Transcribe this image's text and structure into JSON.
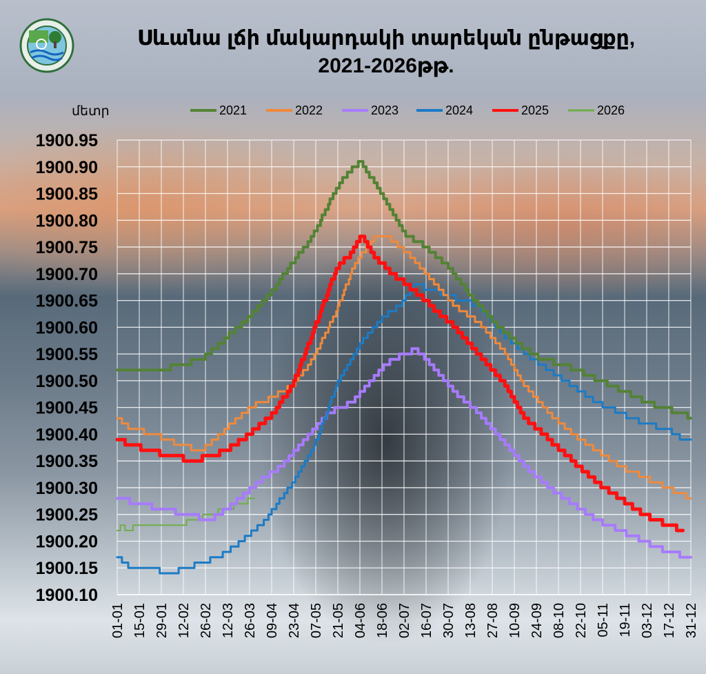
{
  "header": {
    "title_line1": "Սևանա լճի մակարդակի տարեկան ընթացքը,",
    "title_line2": "2021-2026թթ."
  },
  "chart_data": {
    "type": "line",
    "title": "Սևանա լճի մակարդակի տարեկան ընթացքը, 2021-2026թթ.",
    "ylabel": "մետր",
    "xlabel": "",
    "ylim": [
      1900.1,
      1900.95
    ],
    "ystep": 0.05,
    "grid": true,
    "legend_position": "top",
    "x_tick_labels": [
      "01-01",
      "15-01",
      "29-01",
      "12-02",
      "26-02",
      "12-03",
      "26-03",
      "09-04",
      "23-04",
      "07-05",
      "21-05",
      "04-06",
      "18-06",
      "02-07",
      "16-07",
      "30-07",
      "13-08",
      "27-08",
      "10-09",
      "24-09",
      "08-10",
      "22-10",
      "05-11",
      "19-11",
      "03-12",
      "17-12",
      "31-12"
    ],
    "x_tick_days": [
      1,
      15,
      29,
      43,
      57,
      71,
      85,
      99,
      113,
      127,
      141,
      155,
      169,
      183,
      197,
      211,
      225,
      239,
      253,
      267,
      281,
      295,
      309,
      323,
      337,
      351,
      365
    ],
    "series": [
      {
        "name": "2021",
        "color": "#548235",
        "width": 4,
        "x": [
          1,
          30,
          40,
          55,
          70,
          85,
          100,
          112,
          125,
          135,
          145,
          155,
          162,
          172,
          185,
          197,
          212,
          225,
          240,
          255,
          270,
          285,
          300,
          315,
          330,
          345,
          360,
          365
        ],
        "values": [
          1900.52,
          1900.52,
          1900.53,
          1900.54,
          1900.58,
          1900.62,
          1900.67,
          1900.72,
          1900.77,
          1900.83,
          1900.88,
          1900.91,
          1900.88,
          1900.83,
          1900.77,
          1900.75,
          1900.71,
          1900.66,
          1900.61,
          1900.57,
          1900.54,
          1900.53,
          1900.51,
          1900.49,
          1900.47,
          1900.45,
          1900.44,
          1900.43
        ]
      },
      {
        "name": "2022",
        "color": "#f08a3c",
        "width": 3,
        "x": [
          1,
          10,
          25,
          40,
          55,
          70,
          85,
          100,
          112,
          125,
          140,
          152,
          165,
          172,
          185,
          200,
          215,
          230,
          245,
          260,
          275,
          290,
          305,
          320,
          335,
          350,
          365
        ],
        "values": [
          1900.43,
          1900.41,
          1900.4,
          1900.38,
          1900.37,
          1900.41,
          1900.45,
          1900.47,
          1900.49,
          1900.54,
          1900.63,
          1900.72,
          1900.77,
          1900.77,
          1900.74,
          1900.69,
          1900.64,
          1900.61,
          1900.56,
          1900.49,
          1900.44,
          1900.4,
          1900.37,
          1900.34,
          1900.32,
          1900.3,
          1900.28
        ]
      },
      {
        "name": "2023",
        "color": "#a77bfc",
        "width": 4,
        "x": [
          1,
          15,
          30,
          45,
          60,
          75,
          90,
          105,
          120,
          135,
          150,
          165,
          175,
          185,
          190,
          200,
          215,
          230,
          245,
          260,
          275,
          290,
          305,
          320,
          335,
          350,
          365
        ],
        "values": [
          1900.28,
          1900.27,
          1900.26,
          1900.25,
          1900.24,
          1900.27,
          1900.31,
          1900.34,
          1900.39,
          1900.44,
          1900.46,
          1900.51,
          1900.54,
          1900.55,
          1900.56,
          1900.53,
          1900.48,
          1900.44,
          1900.39,
          1900.34,
          1900.3,
          1900.27,
          1900.24,
          1900.22,
          1900.2,
          1900.18,
          1900.17
        ]
      },
      {
        "name": "2024",
        "color": "#1b7bc6",
        "width": 3,
        "x": [
          1,
          10,
          20,
          35,
          45,
          55,
          65,
          80,
          95,
          110,
          125,
          140,
          155,
          170,
          180,
          190,
          210,
          230,
          245,
          260,
          275,
          290,
          305,
          320,
          335,
          350,
          360,
          365
        ],
        "values": [
          1900.17,
          1900.15,
          1900.15,
          1900.14,
          1900.15,
          1900.16,
          1900.17,
          1900.2,
          1900.24,
          1900.3,
          1900.37,
          1900.49,
          1900.57,
          1900.62,
          1900.64,
          1900.68,
          1900.66,
          1900.64,
          1900.59,
          1900.55,
          1900.52,
          1900.49,
          1900.46,
          1900.44,
          1900.42,
          1900.41,
          1900.39,
          1900.39
        ]
      },
      {
        "name": "2025",
        "color": "#ff1010",
        "width": 5,
        "x": [
          1,
          10,
          20,
          35,
          50,
          60,
          70,
          85,
          100,
          112,
          125,
          140,
          150,
          156,
          165,
          175,
          185,
          200,
          215,
          230,
          245,
          260,
          275,
          290,
          305,
          320,
          335,
          350,
          360
        ],
        "values": [
          1900.39,
          1900.38,
          1900.37,
          1900.36,
          1900.35,
          1900.36,
          1900.37,
          1900.4,
          1900.44,
          1900.49,
          1900.59,
          1900.71,
          1900.74,
          1900.77,
          1900.73,
          1900.7,
          1900.68,
          1900.64,
          1900.6,
          1900.55,
          1900.5,
          1900.43,
          1900.39,
          1900.35,
          1900.31,
          1900.28,
          1900.25,
          1900.23,
          1900.22
        ]
      },
      {
        "name": "2026",
        "color": "#70ad47",
        "width": 2,
        "x": [
          1,
          4,
          7,
          15,
          25,
          40,
          50,
          60,
          70,
          80,
          88
        ],
        "values": [
          1900.22,
          1900.23,
          1900.22,
          1900.23,
          1900.23,
          1900.23,
          1900.24,
          1900.25,
          1900.26,
          1900.27,
          1900.28
        ]
      }
    ]
  }
}
